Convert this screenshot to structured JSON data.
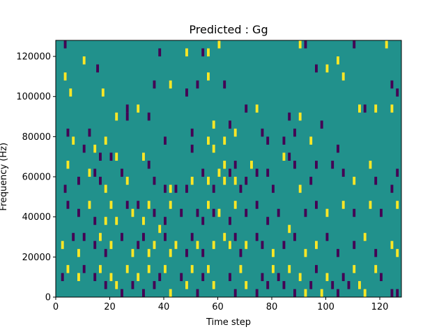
{
  "chart_data": {
    "type": "heatmap",
    "title": "Predicted : Gg",
    "xlabel": "Time step",
    "ylabel": "Frequency (Hz)",
    "xlim": [
      0,
      128
    ],
    "ylim": [
      0,
      128000
    ],
    "x_ticks": [
      0,
      20,
      40,
      60,
      80,
      100,
      120
    ],
    "y_ticks": [
      0,
      20000,
      40000,
      60000,
      80000,
      100000,
      120000
    ],
    "grid": false,
    "colormap": "viridis-3",
    "levels": {
      "low": -1,
      "mid": 0,
      "high": 1
    },
    "colors": {
      "low": "#440154",
      "mid": "#21918c",
      "high": "#fde725"
    },
    "background_value": 0,
    "cell_width_steps": 1,
    "cell_height_hz": 4000,
    "nonzero_cells": [
      {
        "t": 3,
        "f": 124000,
        "v": -1
      },
      {
        "t": 3,
        "f": 108000,
        "v": 1
      },
      {
        "t": 5,
        "f": 100000,
        "v": 1
      },
      {
        "t": 10,
        "f": 116000,
        "v": 1
      },
      {
        "t": 15,
        "f": 112000,
        "v": -1
      },
      {
        "t": 17,
        "f": 100000,
        "v": 1
      },
      {
        "t": 38,
        "f": 120000,
        "v": -1
      },
      {
        "t": 36,
        "f": 104000,
        "v": -1
      },
      {
        "t": 48,
        "f": 120000,
        "v": 1
      },
      {
        "t": 42,
        "f": 104000,
        "v": 1
      },
      {
        "t": 48,
        "f": 100000,
        "v": -1
      },
      {
        "t": 54,
        "f": 120000,
        "v": -1
      },
      {
        "t": 56,
        "f": 120000,
        "v": 1
      },
      {
        "t": 52,
        "f": 104000,
        "v": -1
      },
      {
        "t": 56,
        "f": 108000,
        "v": 1
      },
      {
        "t": 60,
        "f": 124000,
        "v": 1
      },
      {
        "t": 62,
        "f": 104000,
        "v": -1
      },
      {
        "t": 90,
        "f": 124000,
        "v": 1
      },
      {
        "t": 92,
        "f": 124000,
        "v": -1
      },
      {
        "t": 96,
        "f": 112000,
        "v": -1
      },
      {
        "t": 100,
        "f": 112000,
        "v": 1
      },
      {
        "t": 104,
        "f": 116000,
        "v": 1
      },
      {
        "t": 106,
        "f": 108000,
        "v": 1
      },
      {
        "t": 110,
        "f": 124000,
        "v": -1
      },
      {
        "t": 122,
        "f": 124000,
        "v": 1
      },
      {
        "t": 124,
        "f": 104000,
        "v": -1
      },
      {
        "t": 126,
        "f": 100000,
        "v": -1
      },
      {
        "t": 22,
        "f": 88000,
        "v": 1
      },
      {
        "t": 26,
        "f": 92000,
        "v": -1
      },
      {
        "t": 26,
        "f": 88000,
        "v": -1
      },
      {
        "t": 30,
        "f": 92000,
        "v": 1
      },
      {
        "t": 34,
        "f": 88000,
        "v": -1
      },
      {
        "t": 4,
        "f": 80000,
        "v": -1
      },
      {
        "t": 6,
        "f": 76000,
        "v": 1
      },
      {
        "t": 10,
        "f": 72000,
        "v": -1
      },
      {
        "t": 12,
        "f": 80000,
        "v": -1
      },
      {
        "t": 14,
        "f": 72000,
        "v": 1
      },
      {
        "t": 16,
        "f": 68000,
        "v": -1
      },
      {
        "t": 18,
        "f": 76000,
        "v": 1
      },
      {
        "t": 20,
        "f": 68000,
        "v": -1
      },
      {
        "t": 22,
        "f": 68000,
        "v": 1
      },
      {
        "t": 40,
        "f": 76000,
        "v": -1
      },
      {
        "t": 50,
        "f": 80000,
        "v": -1
      },
      {
        "t": 50,
        "f": 72000,
        "v": -1
      },
      {
        "t": 56,
        "f": 76000,
        "v": 1
      },
      {
        "t": 58,
        "f": 72000,
        "v": 1
      },
      {
        "t": 58,
        "f": 84000,
        "v": 1
      },
      {
        "t": 62,
        "f": 76000,
        "v": 1
      },
      {
        "t": 64,
        "f": 84000,
        "v": -1
      },
      {
        "t": 66,
        "f": 80000,
        "v": 1
      },
      {
        "t": 70,
        "f": 92000,
        "v": -1
      },
      {
        "t": 74,
        "f": 92000,
        "v": 1
      },
      {
        "t": 76,
        "f": 80000,
        "v": -1
      },
      {
        "t": 78,
        "f": 76000,
        "v": -1
      },
      {
        "t": 84,
        "f": 76000,
        "v": -1
      },
      {
        "t": 86,
        "f": 88000,
        "v": -1
      },
      {
        "t": 88,
        "f": 80000,
        "v": -1
      },
      {
        "t": 90,
        "f": 88000,
        "v": 1
      },
      {
        "t": 94,
        "f": 76000,
        "v": 1
      },
      {
        "t": 98,
        "f": 84000,
        "v": -1
      },
      {
        "t": 104,
        "f": 72000,
        "v": -1
      },
      {
        "t": 112,
        "f": 92000,
        "v": 1
      },
      {
        "t": 114,
        "f": 92000,
        "v": -1
      },
      {
        "t": 118,
        "f": 92000,
        "v": 1
      },
      {
        "t": 124,
        "f": 92000,
        "v": 1
      },
      {
        "t": 4,
        "f": 64000,
        "v": 1
      },
      {
        "t": 3,
        "f": 52000,
        "v": -1
      },
      {
        "t": 8,
        "f": 56000,
        "v": -1
      },
      {
        "t": 12,
        "f": 60000,
        "v": 1
      },
      {
        "t": 14,
        "f": 60000,
        "v": -1
      },
      {
        "t": 16,
        "f": 56000,
        "v": -1
      },
      {
        "t": 18,
        "f": 52000,
        "v": 1
      },
      {
        "t": 24,
        "f": 60000,
        "v": -1
      },
      {
        "t": 26,
        "f": 56000,
        "v": 1
      },
      {
        "t": 32,
        "f": 68000,
        "v": 1
      },
      {
        "t": 34,
        "f": 64000,
        "v": -1
      },
      {
        "t": 36,
        "f": 56000,
        "v": -1
      },
      {
        "t": 40,
        "f": 52000,
        "v": -1
      },
      {
        "t": 42,
        "f": 52000,
        "v": 1
      },
      {
        "t": 44,
        "f": 52000,
        "v": -1
      },
      {
        "t": 48,
        "f": 52000,
        "v": -1
      },
      {
        "t": 50,
        "f": 56000,
        "v": 1
      },
      {
        "t": 54,
        "f": 60000,
        "v": -1
      },
      {
        "t": 56,
        "f": 56000,
        "v": 1
      },
      {
        "t": 58,
        "f": 52000,
        "v": -1
      },
      {
        "t": 60,
        "f": 60000,
        "v": 1
      },
      {
        "t": 62,
        "f": 64000,
        "v": 1
      },
      {
        "t": 62,
        "f": 56000,
        "v": 1
      },
      {
        "t": 64,
        "f": 60000,
        "v": -1
      },
      {
        "t": 66,
        "f": 64000,
        "v": -1
      },
      {
        "t": 66,
        "f": 56000,
        "v": 1
      },
      {
        "t": 68,
        "f": 52000,
        "v": -1
      },
      {
        "t": 70,
        "f": 56000,
        "v": -1
      },
      {
        "t": 72,
        "f": 64000,
        "v": 1
      },
      {
        "t": 74,
        "f": 60000,
        "v": -1
      },
      {
        "t": 78,
        "f": 60000,
        "v": -1
      },
      {
        "t": 80,
        "f": 52000,
        "v": -1
      },
      {
        "t": 84,
        "f": 68000,
        "v": 1
      },
      {
        "t": 86,
        "f": 68000,
        "v": -1
      },
      {
        "t": 88,
        "f": 64000,
        "v": -1
      },
      {
        "t": 90,
        "f": 52000,
        "v": 1
      },
      {
        "t": 94,
        "f": 56000,
        "v": -1
      },
      {
        "t": 96,
        "f": 64000,
        "v": -1
      },
      {
        "t": 102,
        "f": 64000,
        "v": -1
      },
      {
        "t": 106,
        "f": 60000,
        "v": -1
      },
      {
        "t": 110,
        "f": 56000,
        "v": 1
      },
      {
        "t": 116,
        "f": 64000,
        "v": 1
      },
      {
        "t": 118,
        "f": 56000,
        "v": -1
      },
      {
        "t": 124,
        "f": 52000,
        "v": -1
      },
      {
        "t": 126,
        "f": 60000,
        "v": -1
      },
      {
        "t": 4,
        "f": 44000,
        "v": -1
      },
      {
        "t": 8,
        "f": 40000,
        "v": -1
      },
      {
        "t": 12,
        "f": 44000,
        "v": 1
      },
      {
        "t": 14,
        "f": 36000,
        "v": -1
      },
      {
        "t": 18,
        "f": 36000,
        "v": 1
      },
      {
        "t": 20,
        "f": 44000,
        "v": 1
      },
      {
        "t": 22,
        "f": 36000,
        "v": 1
      },
      {
        "t": 26,
        "f": 44000,
        "v": -1
      },
      {
        "t": 28,
        "f": 40000,
        "v": 1
      },
      {
        "t": 30,
        "f": 44000,
        "v": -1
      },
      {
        "t": 32,
        "f": 36000,
        "v": 1
      },
      {
        "t": 34,
        "f": 44000,
        "v": 1
      },
      {
        "t": 36,
        "f": 40000,
        "v": -1
      },
      {
        "t": 38,
        "f": 32000,
        "v": 1
      },
      {
        "t": 40,
        "f": 36000,
        "v": -1
      },
      {
        "t": 42,
        "f": 44000,
        "v": 1
      },
      {
        "t": 46,
        "f": 40000,
        "v": -1
      },
      {
        "t": 52,
        "f": 40000,
        "v": -1
      },
      {
        "t": 54,
        "f": 36000,
        "v": -1
      },
      {
        "t": 56,
        "f": 44000,
        "v": 1
      },
      {
        "t": 58,
        "f": 40000,
        "v": -1
      },
      {
        "t": 60,
        "f": 40000,
        "v": 1
      },
      {
        "t": 64,
        "f": 36000,
        "v": -1
      },
      {
        "t": 66,
        "f": 44000,
        "v": 1
      },
      {
        "t": 70,
        "f": 40000,
        "v": -1
      },
      {
        "t": 74,
        "f": 44000,
        "v": -1
      },
      {
        "t": 78,
        "f": 36000,
        "v": -1
      },
      {
        "t": 82,
        "f": 40000,
        "v": -1
      },
      {
        "t": 86,
        "f": 32000,
        "v": 1
      },
      {
        "t": 92,
        "f": 40000,
        "v": -1
      },
      {
        "t": 96,
        "f": 44000,
        "v": -1
      },
      {
        "t": 100,
        "f": 40000,
        "v": 1
      },
      {
        "t": 106,
        "f": 44000,
        "v": 1
      },
      {
        "t": 110,
        "f": 40000,
        "v": -1
      },
      {
        "t": 116,
        "f": 44000,
        "v": 1
      },
      {
        "t": 120,
        "f": 40000,
        "v": -1
      },
      {
        "t": 126,
        "f": 44000,
        "v": 1
      },
      {
        "t": 2,
        "f": 24000,
        "v": 1
      },
      {
        "t": 6,
        "f": 28000,
        "v": -1
      },
      {
        "t": 8,
        "f": 20000,
        "v": 1
      },
      {
        "t": 10,
        "f": 28000,
        "v": -1
      },
      {
        "t": 14,
        "f": 24000,
        "v": -1
      },
      {
        "t": 16,
        "f": 28000,
        "v": 1
      },
      {
        "t": 18,
        "f": 20000,
        "v": -1
      },
      {
        "t": 20,
        "f": 24000,
        "v": 1
      },
      {
        "t": 24,
        "f": 28000,
        "v": -1
      },
      {
        "t": 28,
        "f": 20000,
        "v": 1
      },
      {
        "t": 30,
        "f": 24000,
        "v": -1
      },
      {
        "t": 32,
        "f": 28000,
        "v": -1
      },
      {
        "t": 34,
        "f": 20000,
        "v": 1
      },
      {
        "t": 36,
        "f": 24000,
        "v": 1
      },
      {
        "t": 40,
        "f": 28000,
        "v": -1
      },
      {
        "t": 42,
        "f": 20000,
        "v": 1
      },
      {
        "t": 44,
        "f": 24000,
        "v": 1
      },
      {
        "t": 48,
        "f": 20000,
        "v": -1
      },
      {
        "t": 50,
        "f": 28000,
        "v": -1
      },
      {
        "t": 52,
        "f": 24000,
        "v": 1
      },
      {
        "t": 54,
        "f": 20000,
        "v": -1
      },
      {
        "t": 58,
        "f": 24000,
        "v": 1
      },
      {
        "t": 62,
        "f": 28000,
        "v": 1
      },
      {
        "t": 64,
        "f": 24000,
        "v": 1
      },
      {
        "t": 66,
        "f": 28000,
        "v": -1
      },
      {
        "t": 68,
        "f": 20000,
        "v": -1
      },
      {
        "t": 70,
        "f": 24000,
        "v": 1
      },
      {
        "t": 74,
        "f": 28000,
        "v": -1
      },
      {
        "t": 76,
        "f": 24000,
        "v": -1
      },
      {
        "t": 80,
        "f": 20000,
        "v": 1
      },
      {
        "t": 84,
        "f": 24000,
        "v": -1
      },
      {
        "t": 88,
        "f": 28000,
        "v": -1
      },
      {
        "t": 92,
        "f": 20000,
        "v": 1
      },
      {
        "t": 96,
        "f": 24000,
        "v": 1
      },
      {
        "t": 100,
        "f": 28000,
        "v": -1
      },
      {
        "t": 104,
        "f": 20000,
        "v": -1
      },
      {
        "t": 110,
        "f": 24000,
        "v": -1
      },
      {
        "t": 114,
        "f": 28000,
        "v": 1
      },
      {
        "t": 118,
        "f": 20000,
        "v": -1
      },
      {
        "t": 124,
        "f": 24000,
        "v": 1
      },
      {
        "t": 126,
        "f": 20000,
        "v": 1
      },
      {
        "t": 2,
        "f": 8000,
        "v": -1
      },
      {
        "t": 4,
        "f": 12000,
        "v": 1
      },
      {
        "t": 8,
        "f": 8000,
        "v": 1
      },
      {
        "t": 10,
        "f": 12000,
        "v": -1
      },
      {
        "t": 14,
        "f": 8000,
        "v": -1
      },
      {
        "t": 16,
        "f": 12000,
        "v": 1
      },
      {
        "t": 18,
        "f": 4000,
        "v": -1
      },
      {
        "t": 20,
        "f": 8000,
        "v": 1
      },
      {
        "t": 22,
        "f": 4000,
        "v": 1
      },
      {
        "t": 24,
        "f": 0,
        "v": -1
      },
      {
        "t": 26,
        "f": 12000,
        "v": 1
      },
      {
        "t": 28,
        "f": 4000,
        "v": -1
      },
      {
        "t": 30,
        "f": 8000,
        "v": 1
      },
      {
        "t": 32,
        "f": 0,
        "v": -1
      },
      {
        "t": 34,
        "f": 12000,
        "v": 1
      },
      {
        "t": 36,
        "f": 4000,
        "v": -1
      },
      {
        "t": 38,
        "f": 8000,
        "v": -1
      },
      {
        "t": 40,
        "f": 12000,
        "v": 1
      },
      {
        "t": 42,
        "f": 0,
        "v": 1
      },
      {
        "t": 46,
        "f": 8000,
        "v": -1
      },
      {
        "t": 48,
        "f": 4000,
        "v": 1
      },
      {
        "t": 50,
        "f": 12000,
        "v": 1
      },
      {
        "t": 52,
        "f": 0,
        "v": -1
      },
      {
        "t": 54,
        "f": 8000,
        "v": -1
      },
      {
        "t": 56,
        "f": 12000,
        "v": 1
      },
      {
        "t": 58,
        "f": 4000,
        "v": 1
      },
      {
        "t": 64,
        "f": 8000,
        "v": -1
      },
      {
        "t": 66,
        "f": 0,
        "v": -1
      },
      {
        "t": 68,
        "f": 12000,
        "v": 1
      },
      {
        "t": 70,
        "f": 4000,
        "v": 1
      },
      {
        "t": 74,
        "f": 0,
        "v": -1
      },
      {
        "t": 76,
        "f": 8000,
        "v": -1
      },
      {
        "t": 78,
        "f": 4000,
        "v": -1
      },
      {
        "t": 80,
        "f": 12000,
        "v": 1
      },
      {
        "t": 82,
        "f": 8000,
        "v": -1
      },
      {
        "t": 84,
        "f": 4000,
        "v": -1
      },
      {
        "t": 86,
        "f": 12000,
        "v": 1
      },
      {
        "t": 88,
        "f": 0,
        "v": -1
      },
      {
        "t": 90,
        "f": 8000,
        "v": 1
      },
      {
        "t": 92,
        "f": 0,
        "v": 1
      },
      {
        "t": 94,
        "f": 4000,
        "v": -1
      },
      {
        "t": 96,
        "f": 12000,
        "v": -1
      },
      {
        "t": 98,
        "f": 0,
        "v": 1
      },
      {
        "t": 100,
        "f": 8000,
        "v": 1
      },
      {
        "t": 102,
        "f": 4000,
        "v": -1
      },
      {
        "t": 104,
        "f": 0,
        "v": -1
      },
      {
        "t": 106,
        "f": 8000,
        "v": -1
      },
      {
        "t": 108,
        "f": 4000,
        "v": -1
      },
      {
        "t": 110,
        "f": 12000,
        "v": 1
      },
      {
        "t": 112,
        "f": 4000,
        "v": 1
      },
      {
        "t": 114,
        "f": 0,
        "v": 1
      },
      {
        "t": 118,
        "f": 12000,
        "v": 1
      },
      {
        "t": 120,
        "f": 8000,
        "v": -1
      },
      {
        "t": 124,
        "f": 0,
        "v": -1
      },
      {
        "t": 126,
        "f": 0,
        "v": -1
      }
    ]
  }
}
